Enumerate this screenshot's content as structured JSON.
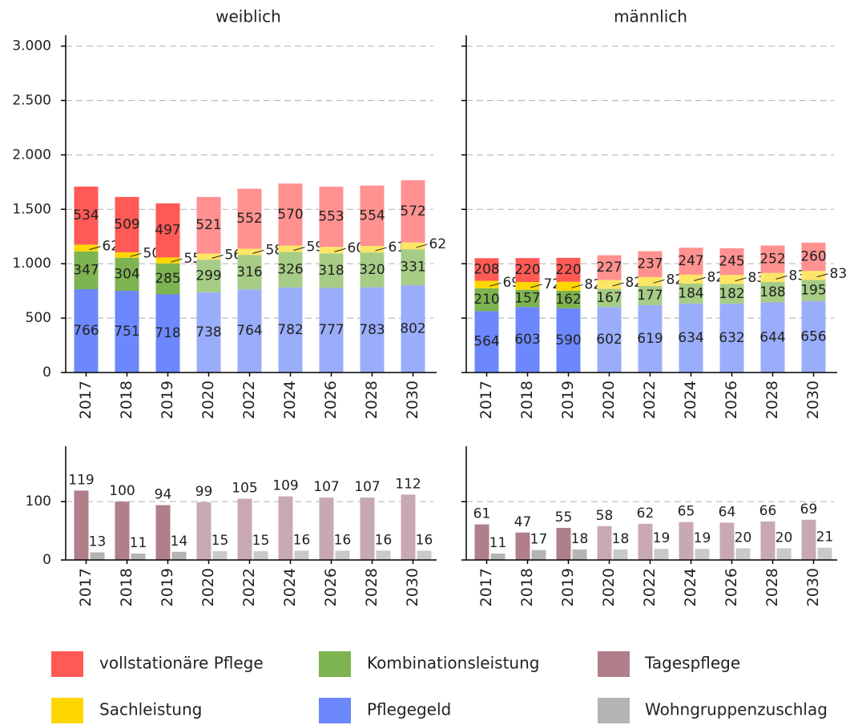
{
  "chart_data": [
    {
      "type": "stacked_bar",
      "title": "weiblich",
      "categories": [
        "2017",
        "2018",
        "2019",
        "2020",
        "2022",
        "2024",
        "2026",
        "2028",
        "2030"
      ],
      "ylim": [
        0,
        3100
      ],
      "yticks": [
        0,
        500,
        {
          "value": 1000,
          "label": "1.000"
        },
        {
          "value": 1500,
          "label": "1.500"
        },
        {
          "value": 2000,
          "label": "2.000"
        },
        {
          "value": 2500,
          "label": "2.500"
        },
        {
          "value": 3000,
          "label": "3.000"
        }
      ],
      "grid": true,
      "forecast_from": "2020",
      "series": [
        {
          "name": "Pflegegeld",
          "color": "#6c88fc",
          "forecast_color": "#9aadfa",
          "values": [
            766,
            751,
            718,
            738,
            764,
            782,
            777,
            783,
            802
          ]
        },
        {
          "name": "Kombinationsleistung",
          "color": "#7db350",
          "forecast_color": "#a6cc86",
          "values": [
            347,
            304,
            285,
            299,
            316,
            326,
            318,
            320,
            331
          ]
        },
        {
          "name": "Sachleistung",
          "color": "#ffd700",
          "forecast_color": "#ffe566",
          "label_position": "outside",
          "values": [
            62,
            50,
            55,
            56,
            58,
            59,
            60,
            61,
            62
          ]
        },
        {
          "name": "vollstationäre Pflege",
          "color": "#ff5a55",
          "forecast_color": "#ff9190",
          "values": [
            534,
            509,
            497,
            521,
            552,
            570,
            553,
            554,
            572
          ]
        }
      ]
    },
    {
      "type": "stacked_bar",
      "title": "männlich",
      "categories": [
        "2017",
        "2018",
        "2019",
        "2020",
        "2022",
        "2024",
        "2026",
        "2028",
        "2030"
      ],
      "ylim": [
        0,
        3100
      ],
      "yticks": [
        0,
        500,
        1000,
        1500,
        2000,
        2500,
        3000
      ],
      "grid": true,
      "forecast_from": "2020",
      "series": [
        {
          "color": "#6c88fc",
          "forecast_color": "#9aadfa",
          "values": [
            564,
            603,
            590,
            602,
            619,
            634,
            632,
            644,
            656
          ]
        },
        {
          "color": "#7db350",
          "forecast_color": "#a6cc86",
          "values": [
            210,
            157,
            162,
            167,
            177,
            184,
            182,
            188,
            195
          ]
        },
        {
          "color": "#ffd700",
          "forecast_color": "#ffe566",
          "label_position": "outside",
          "values": [
            69,
            72,
            82,
            82,
            82,
            82,
            83,
            83,
            83
          ]
        },
        {
          "color": "#ff5a55",
          "forecast_color": "#ff9190",
          "values": [
            208,
            220,
            220,
            227,
            237,
            247,
            245,
            252,
            260
          ]
        }
      ]
    },
    {
      "type": "grouped_bar",
      "categories": [
        "2017",
        "2018",
        "2019",
        "2020",
        "2022",
        "2024",
        "2026",
        "2028",
        "2030"
      ],
      "ylim": [
        0,
        195
      ],
      "yticks": [
        0,
        100
      ],
      "grid": true,
      "forecast_from": "2020",
      "series": [
        {
          "name": "Tagespflege",
          "color": "#b07f8a",
          "forecast_color": "#c9a9b1",
          "values": [
            119,
            100,
            94,
            99,
            105,
            109,
            107,
            107,
            112
          ]
        },
        {
          "name": "Wohngruppenzuschlag",
          "color": "#b4b4b4",
          "forecast_color": "#c9c9c9",
          "values": [
            13,
            11,
            14,
            15,
            15,
            16,
            16,
            16,
            16
          ]
        }
      ]
    },
    {
      "type": "grouped_bar",
      "categories": [
        "2017",
        "2018",
        "2019",
        "2020",
        "2022",
        "2024",
        "2026",
        "2028",
        "2030"
      ],
      "ylim": [
        0,
        195
      ],
      "yticks": [
        0,
        100
      ],
      "grid": true,
      "forecast_from": "2020",
      "series": [
        {
          "color": "#b07f8a",
          "forecast_color": "#c9a9b1",
          "values": [
            61,
            47,
            55,
            58,
            62,
            65,
            64,
            66,
            69
          ]
        },
        {
          "color": "#b4b4b4",
          "forecast_color": "#c9c9c9",
          "values": [
            11,
            17,
            18,
            18,
            19,
            19,
            20,
            20,
            21
          ]
        }
      ]
    }
  ]
}
